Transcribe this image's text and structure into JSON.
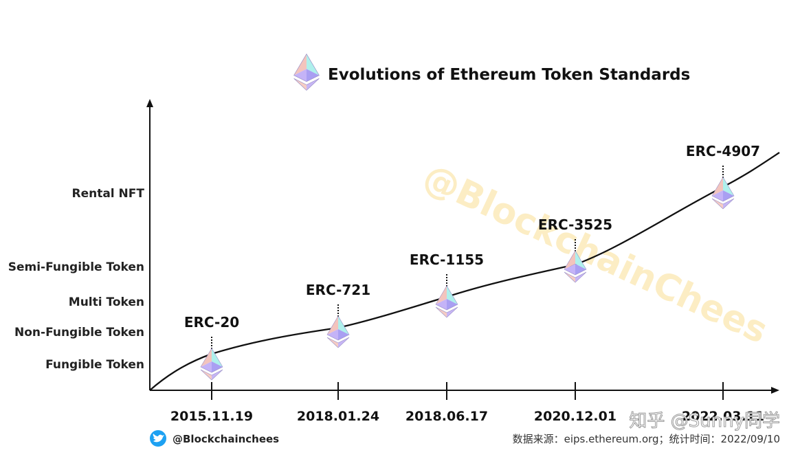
{
  "chart_data": {
    "type": "line",
    "title": "Evolutions of Ethereum Token Standards",
    "xlabel": "",
    "ylabel": "",
    "x_ticks": [
      "2015.11.19",
      "2018.01.24",
      "2018.06.17",
      "2020.12.01",
      "2022.03.11"
    ],
    "y_categories": [
      "Fungible Token",
      "Non-Fungible Token",
      "Multi Token",
      "Semi-Fungible Token",
      "Rental NFT"
    ],
    "points": [
      {
        "name": "ERC-20",
        "date": "2015.11.19",
        "category": "Fungible Token"
      },
      {
        "name": "ERC-721",
        "date": "2018.01.24",
        "category": "Non-Fungible Token"
      },
      {
        "name": "ERC-1155",
        "date": "2018.06.17",
        "category": "Multi Token"
      },
      {
        "name": "ERC-3525",
        "date": "2020.12.01",
        "category": "Semi-Fungible Token"
      },
      {
        "name": "ERC-4907",
        "date": "2022.03.11",
        "category": "Rental NFT"
      }
    ],
    "grid": false,
    "legend": "none"
  },
  "footer": {
    "twitter_handle": "@Blockchainchees",
    "source": "数据来源：eips.ethereum.org；统计时间：2022/09/10"
  },
  "watermarks": {
    "diagonal": "@BlockchainChees",
    "zhihu": "知乎 @Sunny同学"
  },
  "icons": {
    "title_logo": "ethereum-logo-icon",
    "point_marker": "ethereum-logo-icon",
    "social": "twitter-icon"
  },
  "colors": {
    "twitter_blue": "#1da1f2",
    "eth_pink": "#f3c4bd",
    "eth_cyan": "#aef0ec",
    "eth_violet": "#b9a9f4",
    "watermark": "#fbe7b0"
  }
}
